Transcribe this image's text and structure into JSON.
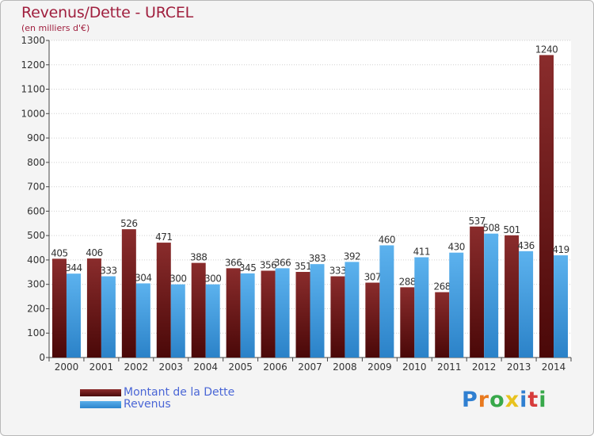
{
  "chart_data": {
    "type": "bar",
    "title": "Revenus/Dette - URCEL",
    "subtitle": "(en milliers d'€)",
    "xlabel": "",
    "ylabel": "",
    "ylim": [
      0,
      1300
    ],
    "yticks": [
      0,
      100,
      200,
      300,
      400,
      500,
      600,
      700,
      800,
      900,
      1000,
      1100,
      1200,
      1300
    ],
    "grid": true,
    "categories": [
      "2000",
      "2001",
      "2002",
      "2003",
      "2004",
      "2005",
      "2006",
      "2007",
      "2008",
      "2009",
      "2010",
      "2011",
      "2012",
      "2013",
      "2014"
    ],
    "series": [
      {
        "name": "Montant de la Dette",
        "color": "#7a1e1e",
        "values": [
          405,
          406,
          526,
          471,
          388,
          366,
          356,
          351,
          333,
          307,
          288,
          268,
          537,
          501,
          1240
        ],
        "labels": [
          "405",
          "406",
          "526",
          "471",
          "388",
          "366",
          "356",
          "351",
          "333",
          "307",
          "288",
          "268",
          "537",
          "501",
          "1240"
        ]
      },
      {
        "name": "Revenus",
        "color": "#3d97dd",
        "values": [
          344,
          333,
          304,
          300,
          300,
          345,
          366,
          383,
          392,
          460,
          411,
          430,
          508,
          436,
          419
        ],
        "labels": [
          "344",
          "333",
          "304",
          "300",
          "300",
          "345",
          "366",
          "383",
          "392",
          "460",
          "411",
          "430",
          "508",
          "436",
          "419"
        ]
      }
    ],
    "legend_position": "bottom-left"
  },
  "legend": {
    "dette_label": "Montant de la Dette",
    "revenus_label": "Revenus"
  },
  "logo": {
    "letters": [
      "P",
      "r",
      "o",
      "x",
      "i",
      "t",
      "i"
    ],
    "colors": [
      "#2f7fd1",
      "#e8791e",
      "#38a84a",
      "#e8c21e",
      "#2f7fd1",
      "#d63b3b",
      "#38a84a"
    ]
  }
}
